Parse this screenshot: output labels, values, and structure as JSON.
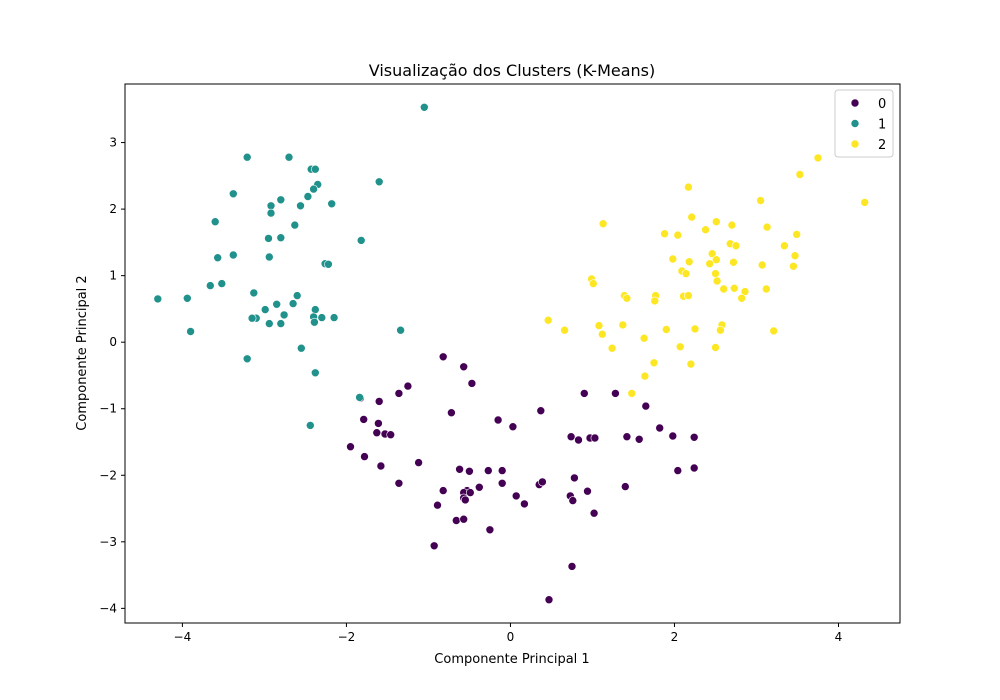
{
  "chart_data": {
    "type": "scatter",
    "title": "Visualização dos Clusters (K-Means)",
    "xlabel": "Componente Principal 1",
    "ylabel": "Componente Principal 2",
    "xlim": [
      -4.7,
      4.75
    ],
    "ylim": [
      -4.22,
      3.88
    ],
    "xticks": [
      -4,
      -2,
      0,
      2,
      4
    ],
    "xtick_labels": [
      "−4",
      "−2",
      "0",
      "2",
      "4"
    ],
    "yticks": [
      -4,
      -3,
      -2,
      -1,
      0,
      1,
      2,
      3
    ],
    "ytick_labels": [
      "−4",
      "−3",
      "−2",
      "−1",
      "0",
      "1",
      "2",
      "3"
    ],
    "grid": false,
    "legend_position": "top-right",
    "series": [
      {
        "name": "0",
        "color": "#440154",
        "points": [
          [
            -0.82,
            -0.22
          ],
          [
            -0.57,
            -0.37
          ],
          [
            -0.47,
            -0.62
          ],
          [
            -1.25,
            -0.66
          ],
          [
            -1.36,
            -0.77
          ],
          [
            -0.72,
            -1.06
          ],
          [
            -1.83,
            -0.84
          ],
          [
            -1.6,
            -0.89
          ],
          [
            -1.79,
            -1.16
          ],
          [
            -1.61,
            -1.22
          ],
          [
            -1.63,
            -1.36
          ],
          [
            -1.53,
            -1.38
          ],
          [
            -1.46,
            -1.39
          ],
          [
            -1.95,
            -1.57
          ],
          [
            -1.78,
            -1.72
          ],
          [
            -1.58,
            -1.86
          ],
          [
            -1.12,
            -1.81
          ],
          [
            -1.36,
            -2.12
          ],
          [
            -0.62,
            -1.91
          ],
          [
            -0.5,
            -1.94
          ],
          [
            -0.27,
            -1.93
          ],
          [
            -0.1,
            -1.93
          ],
          [
            -0.1,
            -2.12
          ],
          [
            -0.38,
            -2.18
          ],
          [
            -0.53,
            -2.23
          ],
          [
            -0.82,
            -2.23
          ],
          [
            -0.57,
            -2.26
          ],
          [
            -0.57,
            -2.34
          ],
          [
            -0.49,
            -2.26
          ],
          [
            -0.55,
            -2.37
          ],
          [
            -0.89,
            -2.45
          ],
          [
            -0.66,
            -2.68
          ],
          [
            -0.57,
            -2.66
          ],
          [
            -0.25,
            -2.82
          ],
          [
            -0.93,
            -3.06
          ],
          [
            0.07,
            -2.31
          ],
          [
            0.17,
            -2.43
          ],
          [
            -0.15,
            -1.17
          ],
          [
            0.03,
            -1.27
          ],
          [
            0.37,
            -1.03
          ],
          [
            0.35,
            -2.14
          ],
          [
            0.39,
            -2.1
          ],
          [
            0.73,
            -2.31
          ],
          [
            0.76,
            -2.38
          ],
          [
            0.74,
            -1.42
          ],
          [
            0.83,
            -1.47
          ],
          [
            0.9,
            -0.77
          ],
          [
            0.97,
            -1.44
          ],
          [
            1.03,
            -1.44
          ],
          [
            0.78,
            -2.04
          ],
          [
            0.94,
            -2.24
          ],
          [
            1.02,
            -2.57
          ],
          [
            0.75,
            -3.37
          ],
          [
            0.47,
            -3.87
          ],
          [
            1.28,
            -0.77
          ],
          [
            1.42,
            -1.42
          ],
          [
            1.57,
            -1.46
          ],
          [
            1.65,
            -0.96
          ],
          [
            1.4,
            -2.17
          ],
          [
            1.82,
            -1.29
          ],
          [
            1.98,
            -1.41
          ],
          [
            2.04,
            -1.93
          ],
          [
            2.24,
            -1.43
          ],
          [
            2.24,
            -1.89
          ]
        ]
      },
      {
        "name": "1",
        "color": "#21918c",
        "points": [
          [
            -1.05,
            3.53
          ],
          [
            -3.21,
            2.78
          ],
          [
            -2.7,
            2.78
          ],
          [
            -2.43,
            2.6
          ],
          [
            -2.38,
            2.6
          ],
          [
            -2.35,
            2.37
          ],
          [
            -2.4,
            2.3
          ],
          [
            -1.6,
            2.41
          ],
          [
            -3.38,
            2.23
          ],
          [
            -2.8,
            2.14
          ],
          [
            -2.47,
            2.19
          ],
          [
            -2.56,
            2.05
          ],
          [
            -2.92,
            2.05
          ],
          [
            -2.92,
            1.94
          ],
          [
            -2.18,
            2.08
          ],
          [
            -3.6,
            1.81
          ],
          [
            -2.63,
            1.76
          ],
          [
            -2.8,
            1.57
          ],
          [
            -2.95,
            1.56
          ],
          [
            -1.82,
            1.53
          ],
          [
            -3.38,
            1.31
          ],
          [
            -3.57,
            1.27
          ],
          [
            -2.94,
            1.28
          ],
          [
            -2.26,
            1.18
          ],
          [
            -2.22,
            1.17
          ],
          [
            -3.52,
            0.88
          ],
          [
            -3.66,
            0.85
          ],
          [
            -4.3,
            0.65
          ],
          [
            -3.94,
            0.66
          ],
          [
            -3.13,
            0.74
          ],
          [
            -2.6,
            0.7
          ],
          [
            -2.85,
            0.57
          ],
          [
            -2.65,
            0.58
          ],
          [
            -2.99,
            0.49
          ],
          [
            -2.38,
            0.49
          ],
          [
            -2.76,
            0.41
          ],
          [
            -3.1,
            0.36
          ],
          [
            -3.15,
            0.36
          ],
          [
            -2.4,
            0.38
          ],
          [
            -2.3,
            0.37
          ],
          [
            -2.15,
            0.37
          ],
          [
            -2.94,
            0.28
          ],
          [
            -2.8,
            0.28
          ],
          [
            -2.39,
            0.3
          ],
          [
            -3.9,
            0.16
          ],
          [
            -1.34,
            0.18
          ],
          [
            -2.55,
            -0.09
          ],
          [
            -3.21,
            -0.25
          ],
          [
            -2.38,
            -0.46
          ],
          [
            -1.84,
            -0.83
          ],
          [
            -2.44,
            -1.25
          ]
        ]
      },
      {
        "name": "2",
        "color": "#fde725",
        "points": [
          [
            3.75,
            2.77
          ],
          [
            3.53,
            2.52
          ],
          [
            2.17,
            2.33
          ],
          [
            4.32,
            2.1
          ],
          [
            3.05,
            2.13
          ],
          [
            2.21,
            1.88
          ],
          [
            2.51,
            1.81
          ],
          [
            2.7,
            1.76
          ],
          [
            3.13,
            1.73
          ],
          [
            2.38,
            1.69
          ],
          [
            1.13,
            1.78
          ],
          [
            1.88,
            1.63
          ],
          [
            2.04,
            1.61
          ],
          [
            3.49,
            1.62
          ],
          [
            2.68,
            1.48
          ],
          [
            2.75,
            1.45
          ],
          [
            3.34,
            1.45
          ],
          [
            2.46,
            1.33
          ],
          [
            2.51,
            1.24
          ],
          [
            1.98,
            1.25
          ],
          [
            2.18,
            1.21
          ],
          [
            2.43,
            1.18
          ],
          [
            2.72,
            1.2
          ],
          [
            3.07,
            1.16
          ],
          [
            3.47,
            1.3
          ],
          [
            3.45,
            1.14
          ],
          [
            2.09,
            1.07
          ],
          [
            2.14,
            1.03
          ],
          [
            2.5,
            1.03
          ],
          [
            0.99,
            0.95
          ],
          [
            1.01,
            0.88
          ],
          [
            2.52,
            0.92
          ],
          [
            2.6,
            0.8
          ],
          [
            2.73,
            0.81
          ],
          [
            2.86,
            0.76
          ],
          [
            3.12,
            0.8
          ],
          [
            1.39,
            0.7
          ],
          [
            1.42,
            0.66
          ],
          [
            1.77,
            0.7
          ],
          [
            1.76,
            0.62
          ],
          [
            2.11,
            0.69
          ],
          [
            2.17,
            0.7
          ],
          [
            2.82,
            0.66
          ],
          [
            1.08,
            0.25
          ],
          [
            1.12,
            0.12
          ],
          [
            1.37,
            0.26
          ],
          [
            1.9,
            0.19
          ],
          [
            2.25,
            0.2
          ],
          [
            2.58,
            0.26
          ],
          [
            2.56,
            0.18
          ],
          [
            3.21,
            0.17
          ],
          [
            0.46,
            0.33
          ],
          [
            0.66,
            0.18
          ],
          [
            1.63,
            0.06
          ],
          [
            1.24,
            -0.09
          ],
          [
            2.07,
            -0.07
          ],
          [
            2.5,
            -0.08
          ],
          [
            1.75,
            -0.31
          ],
          [
            2.2,
            -0.33
          ],
          [
            1.64,
            -0.51
          ],
          [
            1.48,
            -0.77
          ]
        ]
      }
    ]
  }
}
